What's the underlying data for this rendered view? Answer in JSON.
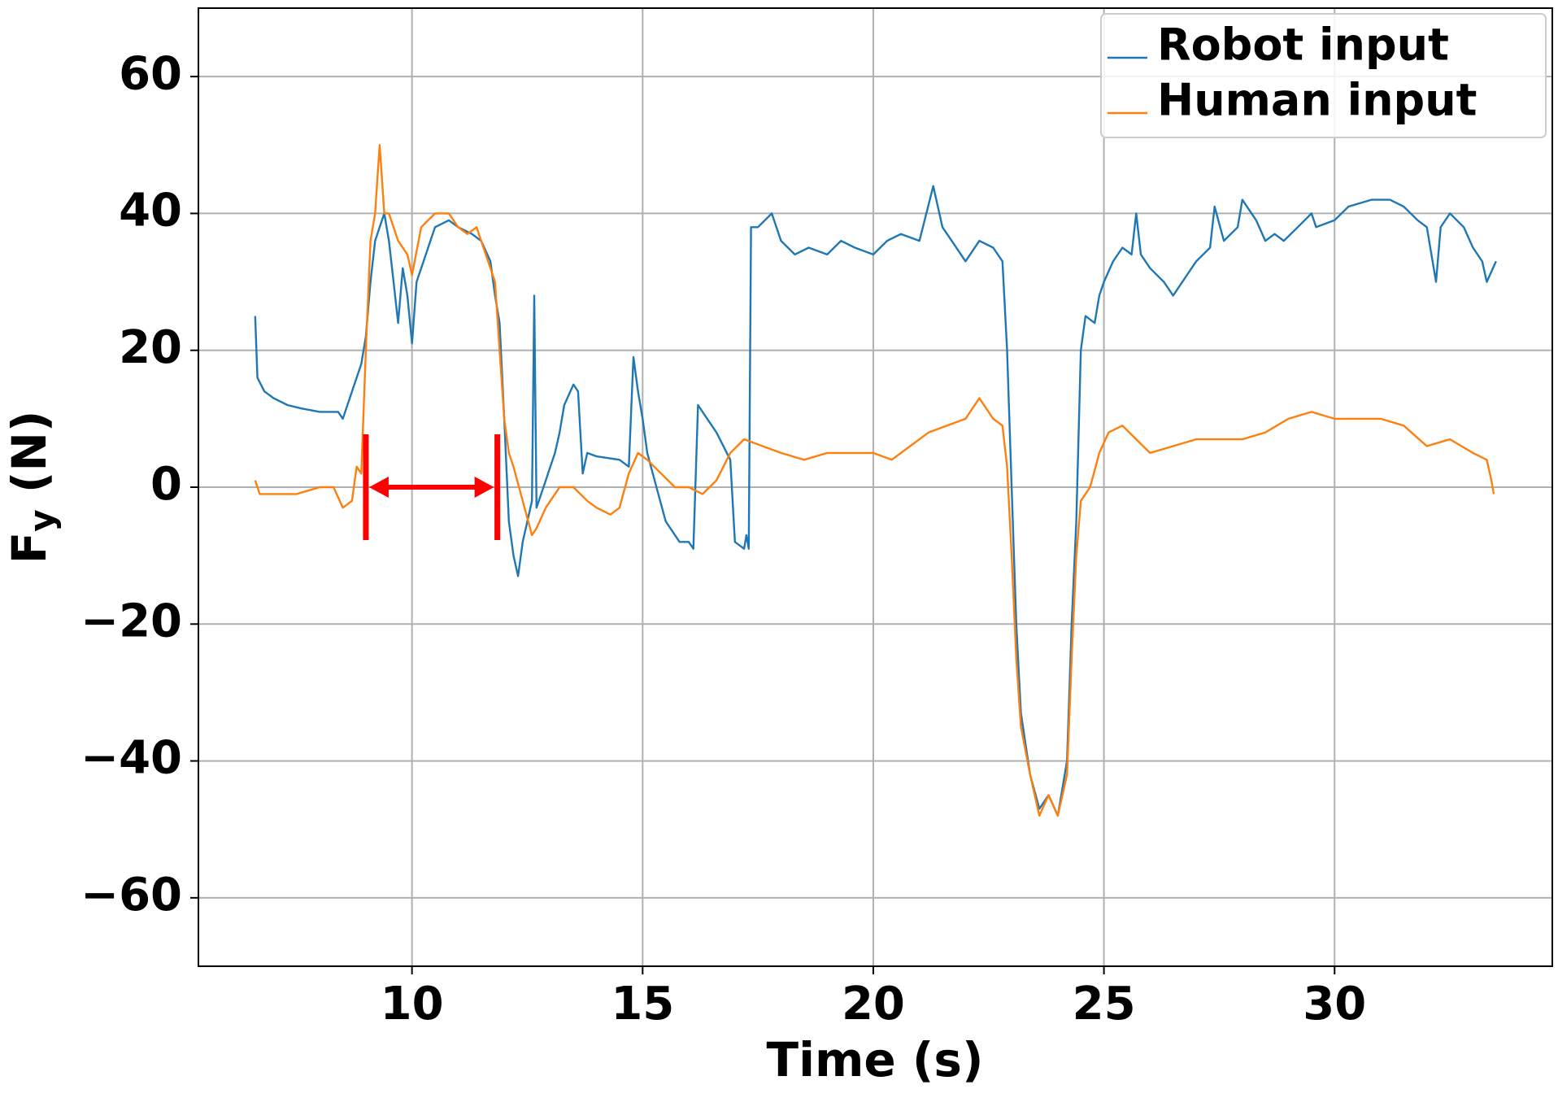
{
  "chart_data": {
    "type": "line",
    "xlabel": "Time (s)",
    "ylabel": [
      "F",
      "y",
      " (N)"
    ],
    "xlim": [
      5.37,
      34.72
    ],
    "ylim": [
      -70,
      70
    ],
    "xticks": [
      10,
      15,
      20,
      25,
      30
    ],
    "yticks": [
      {
        "value": -60,
        "label": "−60"
      },
      {
        "value": -40,
        "label": "−40"
      },
      {
        "value": -20,
        "label": "−20"
      },
      0,
      20,
      40,
      60
    ],
    "grid": true,
    "legend": "upper right",
    "series": [
      {
        "name": "Robot input",
        "color": "#1f77b4",
        "x": [
          6.6,
          6.65,
          6.8,
          7.0,
          7.3,
          7.6,
          8.0,
          8.4,
          8.5,
          8.7,
          8.9,
          9.0,
          9.1,
          9.2,
          9.3,
          9.4,
          9.5,
          9.6,
          9.7,
          9.8,
          9.9,
          10.0,
          10.1,
          10.3,
          10.5,
          10.8,
          11.0,
          11.3,
          11.5,
          11.7,
          11.8,
          11.9,
          12.0,
          12.1,
          12.2,
          12.3,
          12.4,
          12.5,
          12.6,
          12.65,
          12.7,
          12.9,
          13.0,
          13.1,
          13.2,
          13.3,
          13.5,
          13.6,
          13.7,
          13.8,
          14.0,
          14.5,
          14.7,
          14.8,
          14.9,
          15.0,
          15.1,
          15.3,
          15.5,
          15.8,
          16.0,
          16.1,
          16.2,
          16.4,
          16.6,
          16.9,
          17.0,
          17.2,
          17.25,
          17.3,
          17.35,
          17.5,
          17.8,
          18.0,
          18.3,
          18.6,
          19.0,
          19.3,
          19.6,
          20.0,
          20.3,
          20.6,
          21.0,
          21.3,
          21.5,
          21.7,
          22.0,
          22.3,
          22.6,
          22.8,
          22.9,
          23.0,
          23.1,
          23.2,
          23.4,
          23.6,
          23.8,
          24.0,
          24.2,
          24.3,
          24.4,
          24.5,
          24.6,
          24.8,
          24.9,
          25.0,
          25.2,
          25.4,
          25.6,
          25.7,
          25.8,
          26.0,
          26.3,
          26.5,
          26.8,
          27.0,
          27.3,
          27.4,
          27.6,
          27.9,
          28.0,
          28.3,
          28.5,
          28.7,
          28.9,
          29.2,
          29.5,
          29.6,
          30.0,
          30.3,
          30.8,
          31.2,
          31.5,
          31.8,
          32.0,
          32.2,
          32.3,
          32.5,
          32.8,
          33.0,
          33.2,
          33.3,
          33.5
        ],
        "values": [
          25,
          16,
          14,
          13,
          12,
          11.5,
          11,
          11,
          10,
          14,
          18,
          22,
          30,
          36,
          38,
          40,
          36,
          30,
          24,
          32,
          28,
          21,
          30,
          34,
          38,
          39,
          38,
          37,
          36,
          33,
          28,
          24,
          10,
          -5,
          -10,
          -13,
          -8,
          -5,
          -2,
          28,
          -3,
          1,
          3,
          5,
          8,
          12,
          15,
          14,
          2,
          5,
          4.5,
          4,
          3,
          19,
          14,
          10,
          5,
          0,
          -5,
          -8,
          -8,
          -9,
          12,
          10,
          8,
          4,
          -8,
          -9,
          -7,
          -9,
          38,
          38,
          40,
          36,
          34,
          35,
          34,
          36,
          35,
          34,
          36,
          37,
          36,
          44,
          38,
          36,
          33,
          36,
          35,
          33,
          20,
          0,
          -20,
          -33,
          -42,
          -47,
          -45,
          -48,
          -40,
          -20,
          -5,
          20,
          25,
          24,
          28,
          30,
          33,
          35,
          34,
          40,
          34,
          32,
          30,
          28,
          31,
          33,
          35,
          41,
          36,
          38,
          42,
          39,
          36,
          37,
          36,
          38,
          40,
          38,
          39,
          41,
          42,
          42,
          41,
          39,
          38,
          30,
          38,
          40,
          38,
          35,
          33,
          30,
          33
        ]
      },
      {
        "name": "Human input",
        "color": "#ff7f0e",
        "x": [
          6.6,
          6.7,
          7.0,
          7.5,
          8.0,
          8.3,
          8.5,
          8.7,
          8.8,
          8.9,
          9.0,
          9.1,
          9.2,
          9.3,
          9.4,
          9.5,
          9.7,
          9.9,
          10.0,
          10.2,
          10.5,
          10.8,
          11.0,
          11.2,
          11.4,
          11.5,
          11.6,
          11.8,
          11.9,
          12.0,
          12.1,
          12.2,
          12.4,
          12.6,
          12.7,
          12.9,
          13.2,
          13.5,
          13.8,
          14.0,
          14.3,
          14.5,
          14.7,
          14.9,
          15.1,
          15.4,
          15.7,
          16.0,
          16.3,
          16.6,
          16.9,
          17.2,
          17.6,
          18.0,
          18.5,
          19.0,
          19.5,
          20.0,
          20.4,
          20.8,
          21.2,
          21.6,
          22.0,
          22.3,
          22.6,
          22.8,
          22.9,
          23.0,
          23.1,
          23.2,
          23.4,
          23.6,
          23.8,
          24.0,
          24.2,
          24.3,
          24.4,
          24.5,
          24.7,
          24.9,
          25.1,
          25.4,
          25.7,
          26.0,
          26.5,
          27.0,
          27.5,
          28.0,
          28.5,
          29.0,
          29.5,
          30.0,
          30.5,
          31.0,
          31.5,
          32.0,
          32.5,
          33.0,
          33.3,
          33.4,
          33.45
        ],
        "values": [
          1,
          -1,
          -1,
          -1,
          0,
          0,
          -3,
          -2,
          3,
          2,
          20,
          36,
          40,
          50,
          40,
          40,
          36,
          34,
          31,
          38,
          40,
          40,
          38,
          37,
          38,
          36,
          34,
          30,
          20,
          10,
          5,
          3,
          -2,
          -7,
          -6,
          -3,
          0,
          0,
          -2,
          -3,
          -4,
          -3,
          2,
          5,
          4,
          2,
          0,
          0,
          -1,
          1,
          5,
          7,
          6,
          5,
          4,
          5,
          5,
          5,
          4,
          6,
          8,
          9,
          10,
          13,
          10,
          9,
          3,
          -10,
          -25,
          -35,
          -42,
          -48,
          -45,
          -48,
          -42,
          -25,
          -10,
          -2,
          0,
          5,
          8,
          9,
          7,
          5,
          6,
          7,
          7,
          7,
          8,
          10,
          11,
          10,
          10,
          10,
          9,
          6,
          7,
          5,
          4,
          1,
          -1
        ]
      }
    ],
    "span": {
      "x": [
        9.0,
        11.85
      ],
      "y": 0,
      "color": "#ff0000"
    }
  }
}
